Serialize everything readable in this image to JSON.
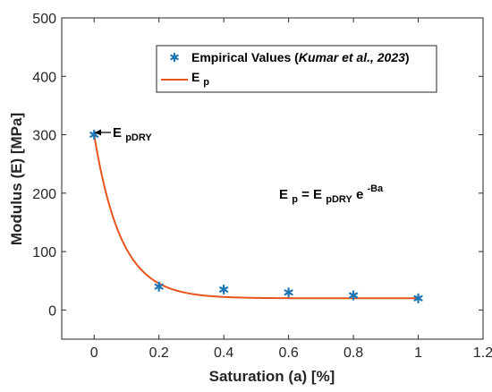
{
  "chart_data": {
    "type": "scatter",
    "xlabel": "Saturation (a) [%]",
    "ylabel": "Modulus (E) [MPa]",
    "xlim": [
      -0.1,
      1.2
    ],
    "ylim": [
      -50,
      500
    ],
    "x_ticks": [
      "0",
      "0.2",
      "0.4",
      "0.6",
      "0.8",
      "1",
      "1.2"
    ],
    "y_ticks": [
      "0",
      "100",
      "200",
      "300",
      "400",
      "500"
    ],
    "grid": false,
    "legend_position": "top-right",
    "series": [
      {
        "name_prefix": "Empirical Values (",
        "name_italic": "Kumar et al., 2023",
        "name_suffix": ")",
        "type": "scatter",
        "marker": "star",
        "color": "#1f77b4",
        "x": [
          0,
          0.2,
          0.4,
          0.6,
          0.8,
          1
        ],
        "y": [
          300,
          40,
          35,
          30,
          25,
          20
        ]
      },
      {
        "name_main": "E",
        "name_sub": "p",
        "type": "line",
        "color": "#e8541c",
        "model": {
          "E0": 300,
          "B": 12,
          "offset": 20
        }
      }
    ],
    "annotations": {
      "edry_label_main": "E",
      "edry_label_sub": "pDRY",
      "equation": {
        "lhs_main": "E",
        "lhs_sub": "p",
        "equals": " = ",
        "rhs_main": "E",
        "rhs_sub": "pDRY",
        "exp_base": " e",
        "exp_sup": "-Ba"
      }
    }
  }
}
